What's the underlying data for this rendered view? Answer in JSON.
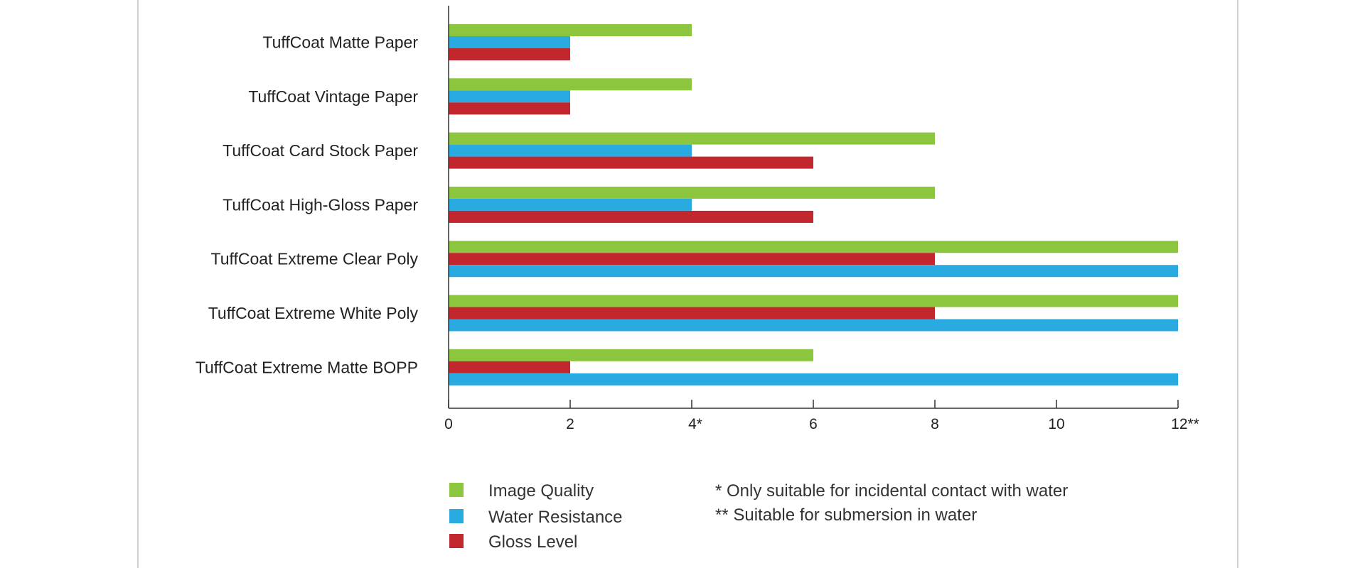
{
  "chart_data": {
    "type": "bar",
    "orientation": "horizontal",
    "categories": [
      "TuffCoat Matte Paper",
      "TuffCoat Vintage Paper",
      "TuffCoat Card Stock Paper",
      "TuffCoat High-Gloss Paper",
      "TuffCoat Extreme Clear Poly",
      "TuffCoat Extreme White Poly",
      "TuffCoat Extreme Matte BOPP"
    ],
    "series": [
      {
        "name": "Image Quality",
        "color": "#8cc63f",
        "values": [
          4,
          4,
          8,
          8,
          12,
          12,
          6
        ]
      },
      {
        "name": "Water Resistance",
        "color": "#29abe2",
        "values": [
          2,
          2,
          4,
          4,
          12,
          12,
          12
        ]
      },
      {
        "name": "Gloss Level",
        "color": "#c1272d",
        "values": [
          2,
          2,
          6,
          6,
          8,
          8,
          2
        ]
      }
    ],
    "bar_order": [
      [
        "Image Quality",
        "Water Resistance",
        "Gloss Level"
      ],
      [
        "Image Quality",
        "Water Resistance",
        "Gloss Level"
      ],
      [
        "Image Quality",
        "Water Resistance",
        "Gloss Level"
      ],
      [
        "Image Quality",
        "Water Resistance",
        "Gloss Level"
      ],
      [
        "Image Quality",
        "Gloss Level",
        "Water Resistance"
      ],
      [
        "Image Quality",
        "Gloss Level",
        "Water Resistance"
      ],
      [
        "Image Quality",
        "Gloss Level",
        "Water Resistance"
      ]
    ],
    "x_ticks": [
      {
        "value": 0,
        "label": "0"
      },
      {
        "value": 2,
        "label": "2"
      },
      {
        "value": 4,
        "label": "4*"
      },
      {
        "value": 6,
        "label": "6"
      },
      {
        "value": 8,
        "label": "8"
      },
      {
        "value": 10,
        "label": "10"
      },
      {
        "value": 12,
        "label": "12**"
      }
    ],
    "xlim": [
      0,
      12
    ],
    "grid": false,
    "legend_position": "bottom-left",
    "notes": [
      "* Only suitable for incidental contact with water",
      "** Suitable for submersion in water"
    ]
  }
}
